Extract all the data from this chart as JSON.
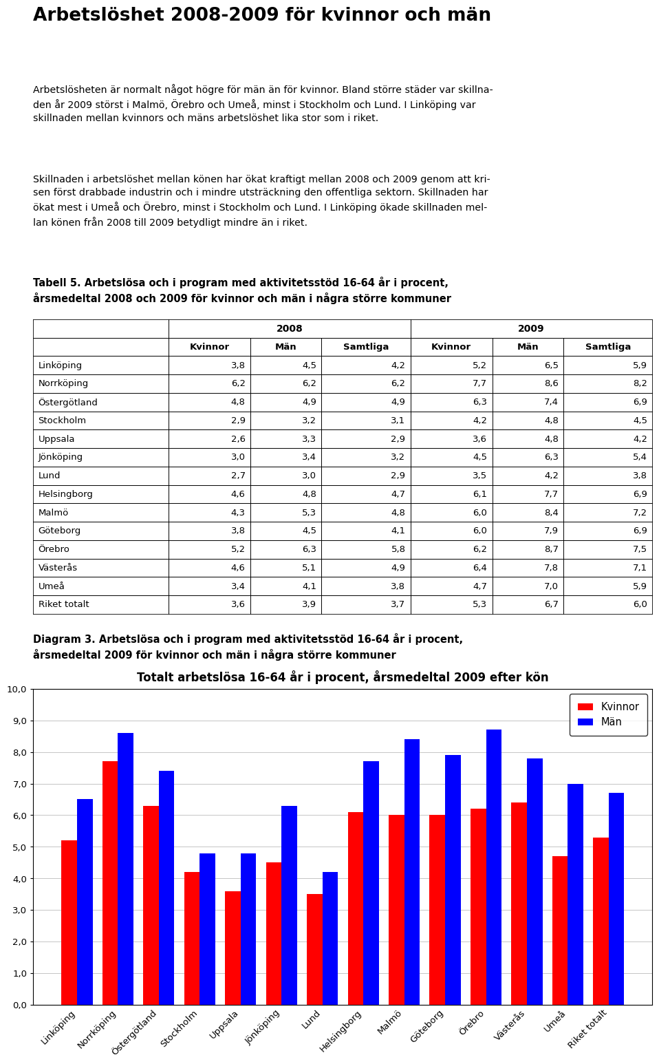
{
  "page_title": "Arbetslöshet 2008-2009 för kvinnor och män",
  "body_text1": "Arbetslösheten är normalt något högre för män än för kvinnor. Bland större städer var skillna-\nden år 2009 störst i Malmö, Örebro och Umeå, minst i Stockholm och Lund. I Linköping var\nskillnaden mellan kvinnors och mäns arbetslöshet lika stor som i riket.",
  "body_text2": "Skillnaden i arbetslöshet mellan könen har ökat kraftigt mellan 2008 och 2009 genom att kri-\nsen först drabbade industrin och i mindre utsträckning den offentliga sektorn. Skillnaden har\nökat mest i Umeå och Örebro, minst i Stockholm och Lund. I Linköping ökade skillnaden mel-\nlan könen från 2008 till 2009 betydligt mindre än i riket.",
  "table_title": "Tabell 5. Arbetslösa och i program med aktivitetsstöd 16-64 år i procent,\nårsmedeltal 2008 och 2009 för kvinnor och män i några större kommuner",
  "table_rows": [
    [
      "Linköping",
      "3,8",
      "4,5",
      "4,2",
      "5,2",
      "6,5",
      "5,9"
    ],
    [
      "Norrköping",
      "6,2",
      "6,2",
      "6,2",
      "7,7",
      "8,6",
      "8,2"
    ],
    [
      "Östergötland",
      "4,8",
      "4,9",
      "4,9",
      "6,3",
      "7,4",
      "6,9"
    ],
    [
      "Stockholm",
      "2,9",
      "3,2",
      "3,1",
      "4,2",
      "4,8",
      "4,5"
    ],
    [
      "Uppsala",
      "2,6",
      "3,3",
      "2,9",
      "3,6",
      "4,8",
      "4,2"
    ],
    [
      "Jönköping",
      "3,0",
      "3,4",
      "3,2",
      "4,5",
      "6,3",
      "5,4"
    ],
    [
      "Lund",
      "2,7",
      "3,0",
      "2,9",
      "3,5",
      "4,2",
      "3,8"
    ],
    [
      "Helsingborg",
      "4,6",
      "4,8",
      "4,7",
      "6,1",
      "7,7",
      "6,9"
    ],
    [
      "Malmö",
      "4,3",
      "5,3",
      "4,8",
      "6,0",
      "8,4",
      "7,2"
    ],
    [
      "Göteborg",
      "3,8",
      "4,5",
      "4,1",
      "6,0",
      "7,9",
      "6,9"
    ],
    [
      "Örebro",
      "5,2",
      "6,3",
      "5,8",
      "6,2",
      "8,7",
      "7,5"
    ],
    [
      "Västerås",
      "4,6",
      "5,1",
      "4,9",
      "6,4",
      "7,8",
      "7,1"
    ],
    [
      "Umeå",
      "3,4",
      "4,1",
      "3,8",
      "4,7",
      "7,0",
      "5,9"
    ],
    [
      "Riket totalt",
      "3,6",
      "3,9",
      "3,7",
      "5,3",
      "6,7",
      "6,0"
    ]
  ],
  "diagram_title": "Diagram 3. Arbetslösa och i program med aktivitetsstöd 16-64 år i procent,\nårsmedeltal 2009 för kvinnor och män i några större kommuner",
  "chart_title": "Totalt arbetslösa 16-64 år i procent, årsmedeltal 2009 efter kön",
  "categories": [
    "Linköping",
    "Norrköping",
    "Östergötland",
    "Stockholm",
    "Uppsala",
    "Jönköping",
    "Lund",
    "Helsingborg",
    "Malmö",
    "Göteborg",
    "Örebro",
    "Västerås",
    "Umeå",
    "Riket totalt"
  ],
  "kvinnor_2009": [
    5.2,
    7.7,
    6.3,
    4.2,
    3.6,
    4.5,
    3.5,
    6.1,
    6.0,
    6.0,
    6.2,
    6.4,
    4.7,
    5.3
  ],
  "man_2009": [
    6.5,
    8.6,
    7.4,
    4.8,
    4.8,
    6.3,
    4.2,
    7.7,
    8.4,
    7.9,
    8.7,
    7.8,
    7.0,
    6.7
  ],
  "bar_color_kvinnor": "#FF0000",
  "bar_color_man": "#0000FF",
  "ylim": [
    0,
    10
  ],
  "yticks": [
    0.0,
    1.0,
    2.0,
    3.0,
    4.0,
    5.0,
    6.0,
    7.0,
    8.0,
    9.0,
    10.0
  ],
  "background_color": "#FFFFFF"
}
